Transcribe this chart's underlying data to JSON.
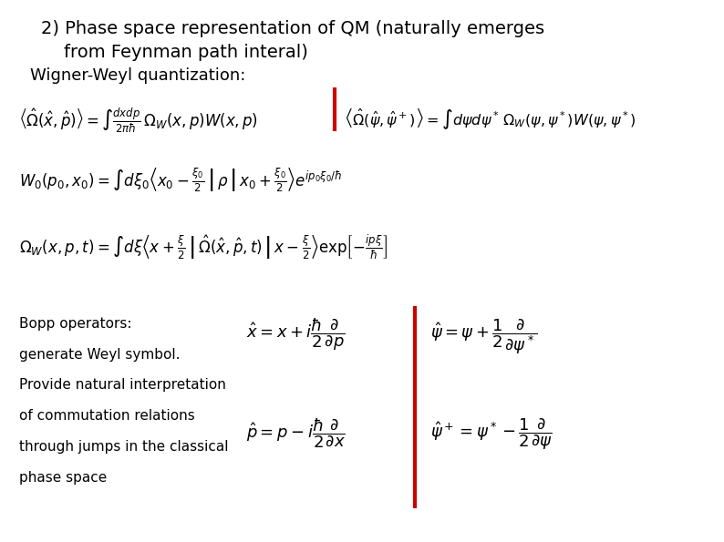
{
  "background_color": "#ffffff",
  "title_line1": "2) Phase space representation of QM (naturally emerges",
  "title_line2": "    from Feynman path interal)",
  "subtitle": "Wigner-Weyl quantization:",
  "bopp_text_line1": "Bopp operators:",
  "bopp_text_line2": "generate Weyl symbol.",
  "bopp_text_line3": "Provide natural interpretation",
  "bopp_text_line4": "of commutation relations",
  "bopp_text_line5": "through jumps in the classical",
  "bopp_text_line6": "phase space",
  "divider_color": "#cc0000",
  "text_color": "#000000",
  "title_fontsize": 14,
  "subtitle_fontsize": 13,
  "eq_fontsize": 12,
  "bopp_text_fontsize": 11,
  "bopp_eq_fontsize": 13
}
